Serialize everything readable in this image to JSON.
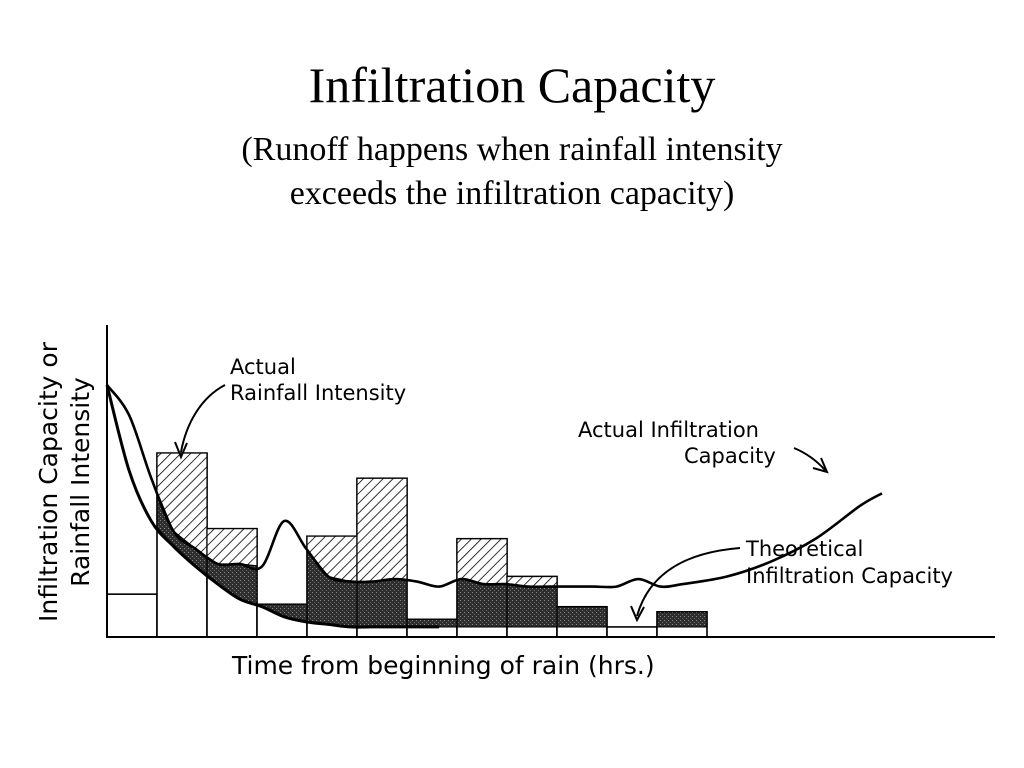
{
  "title": "Infiltration Capacity",
  "subtitle_line1": "(Runoff happens when rainfall intensity",
  "subtitle_line2": "exceeds the infiltration capacity)",
  "chart_data": {
    "type": "bar",
    "xlabel": "Time from beginning of rain (hrs.)",
    "ylabel_line1": "Infiltration Capacity or",
    "ylabel_line2": "Rainfall Intensity",
    "annotations": {
      "rainfall_line1": "Actual",
      "rainfall_line2": "Rainfall Intensity",
      "actual_inf_line1": "Actual Infiltration",
      "actual_inf_line2": "Capacity",
      "theoretical_line1": "Theoretical",
      "theoretical_line2": "Infiltration Capacity"
    },
    "rainfall_intensity": [
      0.17,
      0.73,
      0.43,
      0.13,
      0.4,
      0.63,
      0.07,
      0.39,
      0.24,
      0.12,
      0.04,
      0.1
    ],
    "theoretical_infiltration": {
      "x": [
        0.0,
        0.5,
        1.0,
        1.5,
        2.0,
        2.5,
        3.0,
        3.5,
        4.0,
        4.5,
        5.0,
        5.5,
        6.0,
        6.5,
        7.0,
        7.5
      ],
      "y": [
        1.0,
        0.66,
        0.46,
        0.36,
        0.28,
        0.21,
        0.15,
        0.12,
        0.08,
        0.06,
        0.05,
        0.04,
        0.04,
        0.04,
        0.04,
        0.04
      ]
    },
    "actual_infiltration": {
      "x": [
        0.0,
        0.5,
        1.0,
        1.5,
        2.0,
        2.5,
        3.0,
        3.5,
        4.0,
        4.5,
        5.0,
        5.5,
        6.0,
        6.5,
        7.0,
        7.5,
        8.0,
        8.5,
        9.0,
        9.5,
        10.0,
        10.5,
        11.0,
        11.5,
        12.0,
        12.5,
        13.0,
        14.0,
        15.0,
        16.0,
        17.0,
        17.5
      ],
      "y": [
        1.0,
        0.88,
        0.63,
        0.42,
        0.35,
        0.29,
        0.29,
        0.28,
        0.46,
        0.35,
        0.24,
        0.22,
        0.22,
        0.23,
        0.22,
        0.2,
        0.23,
        0.21,
        0.21,
        0.2,
        0.2,
        0.2,
        0.2,
        0.2,
        0.23,
        0.2,
        0.21,
        0.24,
        0.3,
        0.39,
        0.52,
        0.57
      ]
    },
    "grid": false,
    "legend": "none"
  }
}
